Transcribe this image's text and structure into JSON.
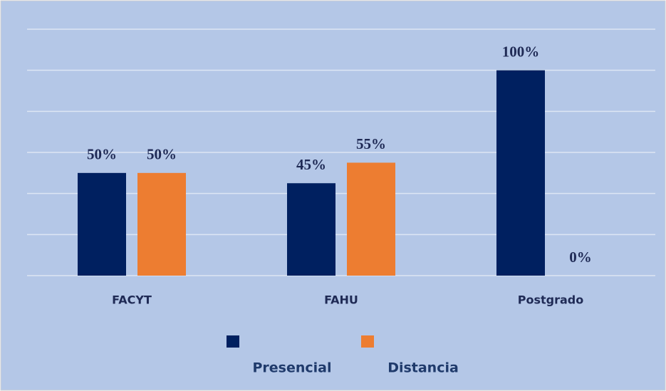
{
  "chart_data": {
    "type": "bar",
    "categories": [
      "FACYT",
      "FAHU",
      "Postgrado"
    ],
    "series": [
      {
        "name": "Presencial",
        "color": "#002060",
        "values": [
          50,
          45,
          100
        ],
        "value_labels": [
          "50%",
          "45%",
          "100%"
        ]
      },
      {
        "name": "Distancia",
        "color": "#ED7D31",
        "values": [
          50,
          55,
          0
        ],
        "value_labels": [
          "50%",
          "55%",
          "0%"
        ]
      }
    ],
    "ylim": [
      0,
      120
    ],
    "yticks": [
      0,
      20,
      40,
      60,
      80,
      100,
      120
    ],
    "grid": true,
    "legend": "bottom"
  }
}
